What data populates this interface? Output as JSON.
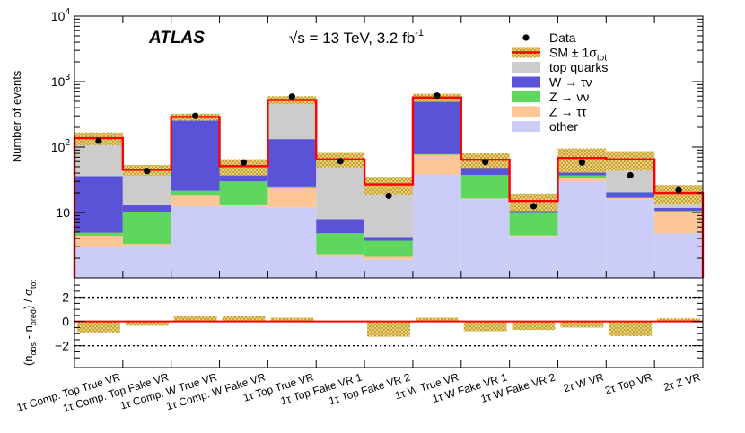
{
  "chart_data": {
    "type": "stacked-bar",
    "experiment_label": "ATLAS",
    "energy_prefix": "√s = 13 TeV, 3.2 fb",
    "energy_superscript": "-1",
    "main_panel": {
      "ylabel": "Number of events",
      "yscale": "log",
      "ylim": [
        1,
        10000
      ],
      "y_ticks": [
        {
          "value": 10,
          "base": "10",
          "exponent": ""
        },
        {
          "value": 100,
          "base": "10",
          "exponent": "2"
        },
        {
          "value": 1000,
          "base": "10",
          "exponent": "3"
        },
        {
          "value": 10000,
          "base": "10",
          "exponent": "4"
        }
      ]
    },
    "ratio_panel": {
      "ylabel_parts": [
        "(n",
        "obs",
        " - n",
        "pred",
        ") / σ",
        "tot"
      ],
      "ylim": [
        -3.8,
        3.6
      ],
      "y_ticks": [
        -2,
        0,
        2
      ],
      "y_tick_labels": [
        "−2",
        "0",
        "2"
      ]
    },
    "categories": [
      "1τ Comp. Top True VR",
      "1τ Comp. Top Fake VR",
      "1τ Comp. W True VR",
      "1τ Comp. W Fake VR",
      "1τ Top True VR",
      "1τ Top Fake VR 1",
      "1τ Top Fake VR 2",
      "1τ W True VR",
      "1τ W Fake VR 1",
      "1τ W Fake VR 2",
      "2τ W VR",
      "2τ Top VR",
      "2τ Z VR"
    ],
    "series": [
      {
        "name": "other",
        "color": "#ccccf8",
        "values": [
          3,
          3.1,
          12.5,
          12.5,
          12,
          2.1,
          1.9,
          38,
          16,
          4.3,
          30,
          16,
          4.8
        ]
      },
      {
        "name": "Z → ττ",
        "color": "#fdc696",
        "values": [
          1.4,
          0.2,
          5.5,
          0.4,
          11.5,
          0.2,
          0.2,
          38,
          0.4,
          0.15,
          4,
          0.6,
          5.2
        ]
      },
      {
        "name": "Z → νν",
        "color": "#5fd75f",
        "values": [
          0.5,
          6.8,
          3.5,
          17,
          0.8,
          2.5,
          1.6,
          2,
          21,
          5.4,
          3,
          0.2,
          0.6
        ]
      },
      {
        "name": "W → τν",
        "color": "#5a53d8",
        "values": [
          31,
          2.8,
          260,
          12,
          108,
          3.1,
          0.5,
          452,
          14,
          1,
          4,
          3.7,
          1.2
        ]
      },
      {
        "name": "top quarks",
        "color": "#cccccc",
        "values": [
          101,
          32,
          6,
          9,
          393,
          57,
          22.8,
          40,
          12,
          4,
          27,
          44.5,
          8.2
        ]
      }
    ],
    "sm_total": [
      137,
      45,
      288,
      51,
      525,
      65,
      27,
      570,
      64,
      15,
      68,
      65,
      20
    ],
    "sm_uncertainty_rel": [
      0.22,
      0.18,
      0.12,
      0.28,
      0.14,
      0.25,
      0.3,
      0.14,
      0.25,
      0.3,
      0.4,
      0.33,
      0.32
    ],
    "data": [
      125,
      43,
      300,
      58,
      590,
      61,
      18,
      610,
      59,
      12.5,
      58,
      37,
      22
    ],
    "pulls": [
      -0.9,
      -0.35,
      0.5,
      0.45,
      0.3,
      0,
      -1.25,
      0.3,
      -0.8,
      -0.7,
      -0.5,
      -1.2,
      0.25
    ],
    "legend": [
      {
        "label": "Data",
        "kind": "marker"
      },
      {
        "label": "SM ± 1σ",
        "subscript": "tot",
        "kind": "band"
      },
      {
        "label": "top quarks",
        "kind": "fill",
        "color": "#cccccc"
      },
      {
        "label": "W → τν",
        "kind": "fill",
        "color": "#5a53d8"
      },
      {
        "label": "Z → νν",
        "kind": "fill",
        "color": "#5fd75f"
      },
      {
        "label": "Z → ττ",
        "kind": "fill",
        "color": "#fdc696"
      },
      {
        "label": "other",
        "kind": "fill",
        "color": "#ccccf8"
      }
    ],
    "colors": {
      "sm_line": "#ff0000",
      "band": "#c9a325",
      "data": "#000000"
    }
  }
}
